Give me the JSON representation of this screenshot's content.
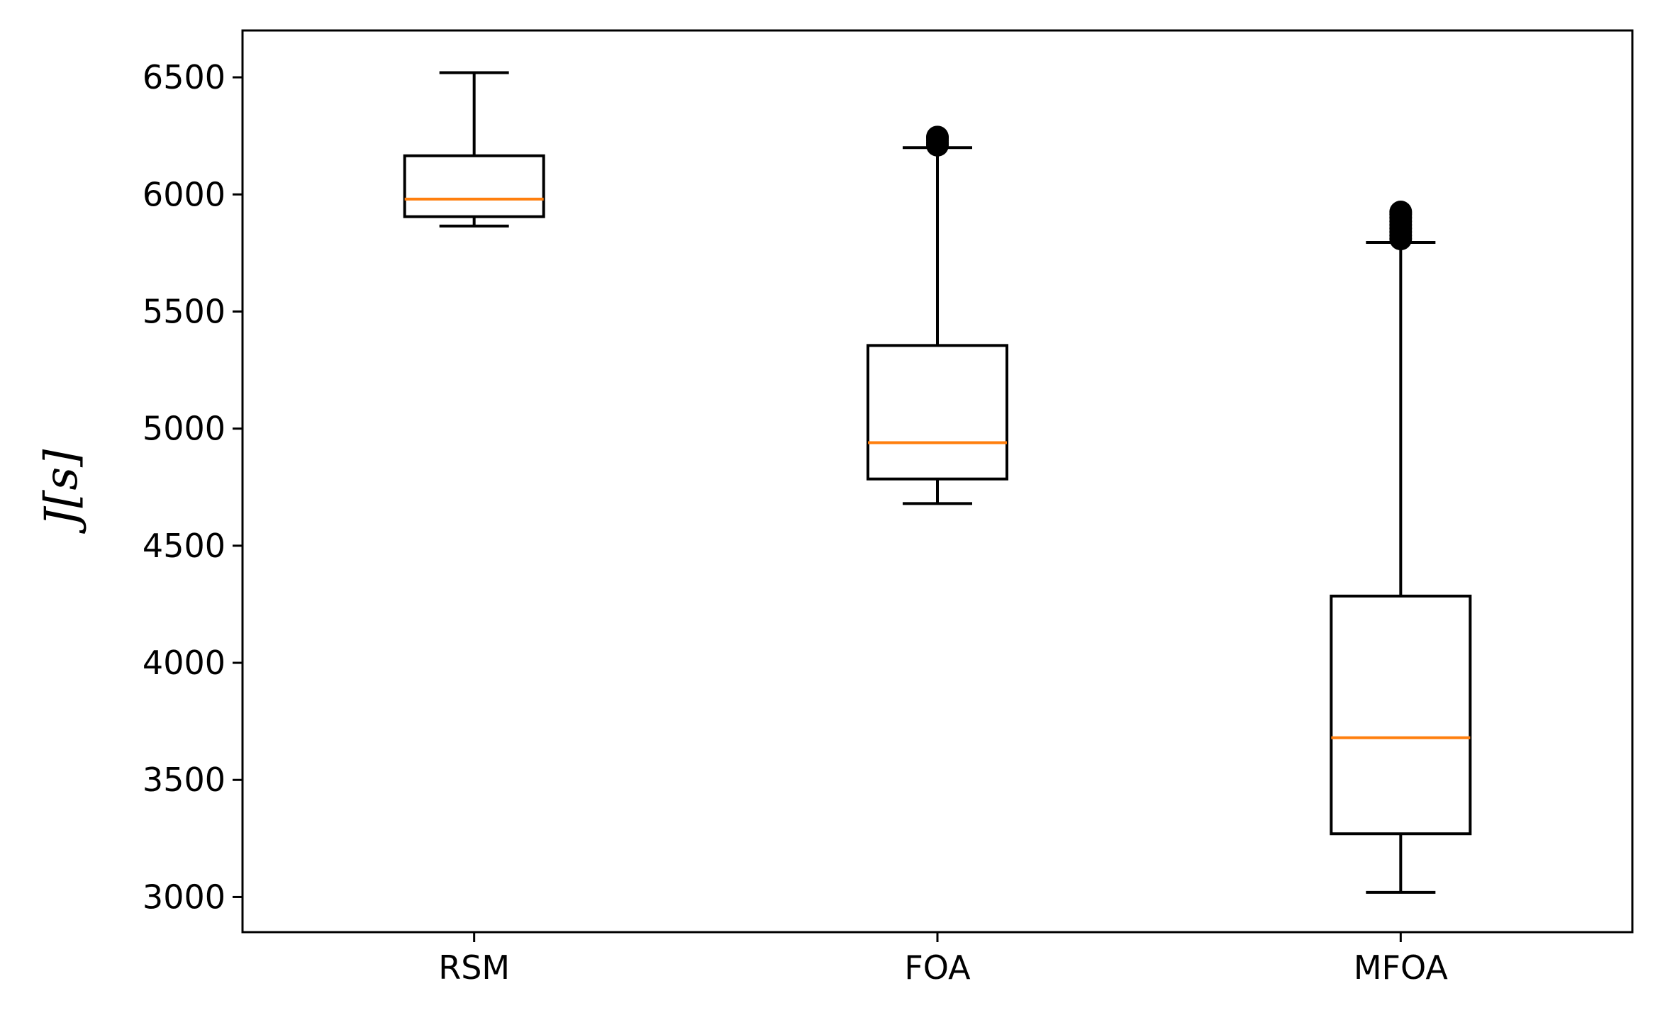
{
  "chart_data": {
    "type": "box",
    "title": "",
    "xlabel": "",
    "ylabel": "J[s]",
    "ylim": [
      2850,
      6700
    ],
    "yticks": [
      3000,
      3500,
      4000,
      4500,
      5000,
      5500,
      6000,
      6500
    ],
    "categories": [
      "RSM",
      "FOA",
      "MFOA"
    ],
    "boxes": [
      {
        "name": "RSM",
        "whisker_low": 5865,
        "q1": 5905,
        "median": 5980,
        "q3": 6165,
        "whisker_high": 6520,
        "outliers": []
      },
      {
        "name": "FOA",
        "whisker_low": 4680,
        "q1": 4785,
        "median": 4940,
        "q3": 5355,
        "whisker_high": 6200,
        "outliers": [
          6210,
          6220,
          6230,
          6240,
          6245
        ]
      },
      {
        "name": "MFOA",
        "whisker_low": 3020,
        "q1": 3270,
        "median": 3680,
        "q3": 4285,
        "whisker_high": 5795,
        "outliers": [
          5810,
          5825,
          5840,
          5855,
          5870,
          5885,
          5900,
          5915,
          5925
        ]
      }
    ],
    "colors": {
      "box": "#000000",
      "median": "#ff7f0e",
      "outlier": "#000000"
    },
    "grid": false,
    "legend": "none"
  }
}
